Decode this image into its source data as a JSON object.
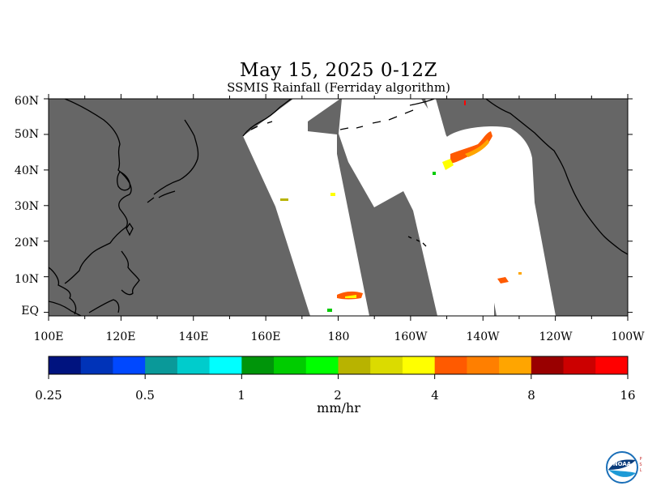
{
  "header": {
    "title": "May 15, 2025 0-12Z",
    "subtitle": "SSMIS Rainfall (Ferriday algorithm)"
  },
  "map": {
    "lon_range": [
      100,
      260
    ],
    "lat_range": [
      -1,
      60
    ],
    "lat_labels": [
      "60N",
      "50N",
      "40N",
      "30N",
      "20N",
      "10N",
      "EQ"
    ],
    "lat_values": [
      60,
      50,
      40,
      30,
      20,
      10,
      0
    ],
    "lon_labels": [
      "100E",
      "120E",
      "140E",
      "160E",
      "180",
      "160W",
      "140W",
      "120W",
      "100W"
    ],
    "lon_values": [
      100,
      120,
      140,
      160,
      180,
      200,
      220,
      240,
      260
    ],
    "no_data_color": "#666666",
    "swath_color": "#ffffff",
    "coast_color": "#000000"
  },
  "colorbar": {
    "colors": [
      "#00137f",
      "#0033b8",
      "#0048ff",
      "#0a9999",
      "#00cccc",
      "#00ffff",
      "#00950a",
      "#00cc00",
      "#00ff00",
      "#b8b300",
      "#dbdb00",
      "#ffff00",
      "#ff5a00",
      "#ff7f00",
      "#ffa500",
      "#990000",
      "#cc0000",
      "#ff0000"
    ],
    "tick_labels": [
      "0.25",
      "0.5",
      "1",
      "2",
      "4",
      "8",
      "16"
    ],
    "units": "mm/hr"
  },
  "logo": {
    "icon": "noaa-logo-icon",
    "text": "NOAA",
    "side_text": "PSL"
  }
}
